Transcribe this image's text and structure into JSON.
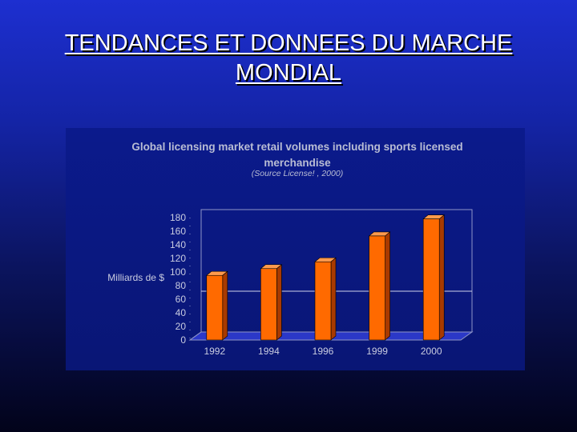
{
  "slide": {
    "title": "TENDANCES ET DONNEES DU MARCHE MONDIAL"
  },
  "colors": {
    "background": "#1424a6",
    "bar_front": "#ff6a00",
    "bar_side": "#a83a00",
    "bar_top": "#ff9a4d",
    "text": "#c9cce0"
  },
  "chart_data": {
    "type": "bar",
    "title": "Global licensing market retail volumes including sports licensed merchandise",
    "subtitle": "(Source License! , 2000)",
    "ylabel": "Milliards de $",
    "xlabel": "",
    "categories": [
      "1992",
      "1994",
      "1996",
      "1999",
      "2000"
    ],
    "values": [
      95,
      105,
      115,
      153,
      178
    ],
    "ylim": [
      0,
      180
    ],
    "yticks": [
      0,
      20,
      40,
      60,
      80,
      100,
      120,
      140,
      160,
      180
    ],
    "grid": false,
    "legend": "none",
    "style": "3d"
  }
}
